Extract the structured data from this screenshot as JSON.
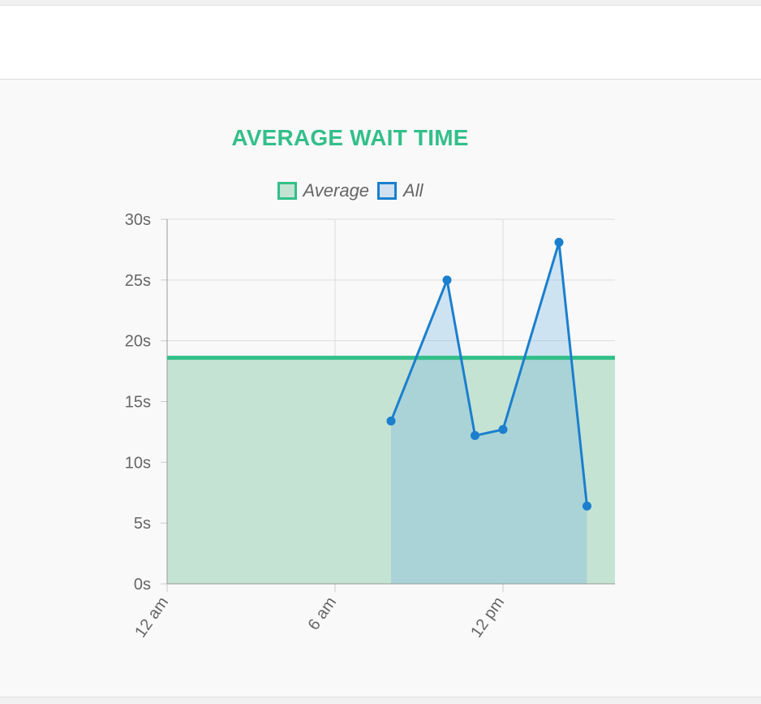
{
  "chart_data": {
    "type": "line",
    "title": "AVERAGE WAIT TIME",
    "xlabel": "",
    "ylabel": "",
    "x_ticks": [
      "12 am",
      "6 am",
      "12 pm"
    ],
    "y_ticks": [
      "0s",
      "5s",
      "10s",
      "15s",
      "20s",
      "25s",
      "30s"
    ],
    "xlim": [
      0,
      16
    ],
    "ylim": [
      0,
      30
    ],
    "grid": true,
    "legend_position": "top",
    "legend": [
      {
        "label": "Average",
        "border": "#33bf8a",
        "fill": "#c5e3d3"
      },
      {
        "label": "All",
        "border": "#1b7fce",
        "fill": "#cfe1f1"
      }
    ],
    "series": [
      {
        "name": "Average",
        "type": "area",
        "color": "#33bf8a",
        "fill": "#c5e3d3",
        "x": [
          0,
          16
        ],
        "y": [
          18.6,
          18.6
        ]
      },
      {
        "name": "All",
        "type": "area",
        "color": "#1b7fce",
        "fill": "#cfe1f1",
        "x": [
          8,
          10,
          11,
          12,
          14,
          15
        ],
        "y": [
          13.4,
          25.0,
          12.2,
          12.7,
          28.1,
          6.4
        ]
      }
    ]
  }
}
